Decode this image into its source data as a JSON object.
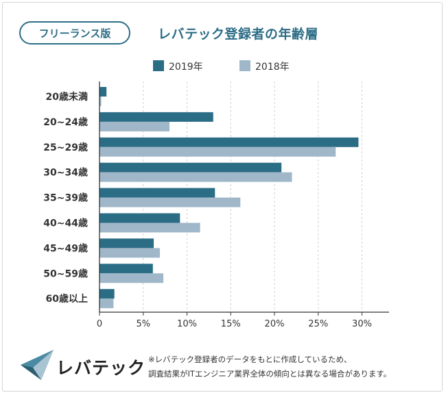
{
  "badge": "フリーランス版",
  "title": "レバテック登録者の年齢層",
  "logo_text": "レバテック",
  "note": {
    "line1": "※レバテック登録者のデータをもとに作成しているため、",
    "line2": "調査結果がITエンジニア業界全体の傾向とは異なる場合があります。"
  },
  "colors": {
    "s2019": "#2c6d86",
    "s2018": "#9fb7c8",
    "title": "#2c6d86"
  },
  "chart_data": {
    "type": "bar",
    "orientation": "horizontal",
    "title": "レバテック登録者の年齢層",
    "categories": [
      "20歳未満",
      "20~24歳",
      "25~29歳",
      "30~34歳",
      "35~39歳",
      "40~44歳",
      "45~49歳",
      "50~59歳",
      "60歳以上"
    ],
    "series": [
      {
        "name": "2019年",
        "values": [
          0.8,
          13.0,
          29.6,
          20.8,
          13.2,
          9.2,
          6.2,
          6.1,
          1.7
        ]
      },
      {
        "name": "2018年",
        "values": [
          0.2,
          8.0,
          27.0,
          22.0,
          16.1,
          11.5,
          6.9,
          7.3,
          1.6
        ]
      }
    ],
    "xticks": [
      "0",
      "5%",
      "10%",
      "15%",
      "20%",
      "25%",
      "30%"
    ],
    "xlim": [
      0,
      33
    ],
    "legend": "top",
    "grid": "vertical dashed"
  }
}
